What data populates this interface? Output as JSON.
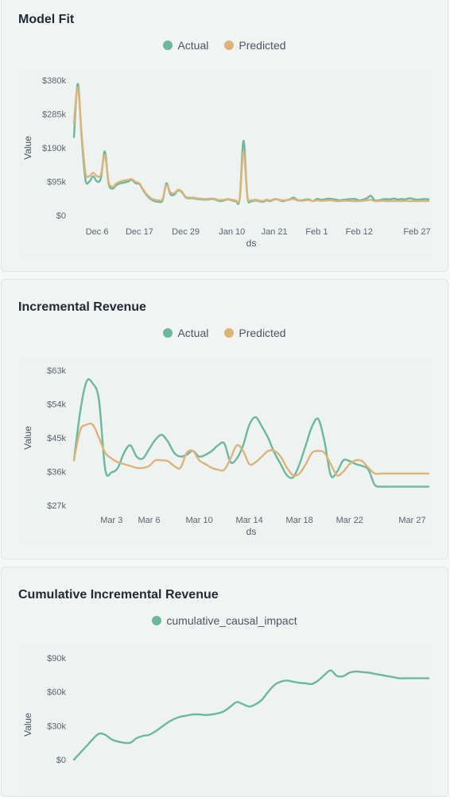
{
  "colors": {
    "actual": "#6bb89b",
    "predicted": "#dcb47b",
    "cumulative": "#6bb89b"
  },
  "panels": [
    {
      "title": "Model Fit",
      "legend": [
        {
          "label": "Actual",
          "color": "#6bb89b"
        },
        {
          "label": "Predicted",
          "color": "#dcb47b"
        }
      ]
    },
    {
      "title": "Incremental Revenue",
      "legend": [
        {
          "label": "Actual",
          "color": "#6bb89b"
        },
        {
          "label": "Predicted",
          "color": "#dcb47b"
        }
      ]
    },
    {
      "title": "Cumulative Incremental Revenue",
      "legend": [
        {
          "label": "cumulative_causal_impact",
          "color": "#6bb89b"
        }
      ]
    }
  ],
  "chart_data": [
    {
      "type": "line",
      "title": "Model Fit",
      "xlabel": "ds",
      "ylabel": "Value",
      "xlim": [
        "Nov 30",
        "Mar 1"
      ],
      "ylim": [
        0,
        380000
      ],
      "y_ticks": [
        "$0",
        "$95k",
        "$190k",
        "$285k",
        "$380k"
      ],
      "y_tick_values": [
        0,
        95000,
        190000,
        285000,
        380000
      ],
      "x_ticks": [
        "Dec 6",
        "Dec 17",
        "Dec 29",
        "Jan 10",
        "Jan 21",
        "Feb 1",
        "Feb 12",
        "Feb 27"
      ],
      "x_tick_positions": [
        6,
        17,
        29,
        41,
        52,
        63,
        74,
        89
      ],
      "x_range": [
        0,
        92
      ],
      "series": [
        {
          "name": "Actual",
          "color": "#6bb89b",
          "x": [
            0,
            1,
            2,
            3,
            4,
            5,
            6,
            7,
            8,
            9,
            10,
            11,
            12,
            13,
            14,
            15,
            16,
            17,
            18,
            19,
            20,
            21,
            22,
            23,
            24,
            25,
            26,
            27,
            28,
            29,
            30,
            31,
            32,
            33,
            34,
            35,
            36,
            37,
            38,
            39,
            40,
            41,
            42,
            43,
            44,
            45,
            46,
            47,
            48,
            49,
            50,
            51,
            52,
            53,
            54,
            55,
            56,
            57,
            58,
            59,
            60,
            61,
            62,
            63,
            64,
            65,
            66,
            67,
            68,
            69,
            70,
            71,
            72,
            73,
            74,
            75,
            76,
            77,
            78,
            79,
            80,
            81,
            82,
            83,
            84,
            85,
            86,
            87,
            88,
            89,
            90,
            91,
            92
          ],
          "y": [
            220000,
            370000,
            220000,
            100000,
            95000,
            110000,
            95000,
            105000,
            180000,
            90000,
            75000,
            85000,
            90000,
            92000,
            95000,
            100000,
            90000,
            88000,
            70000,
            55000,
            45000,
            40000,
            38000,
            42000,
            90000,
            60000,
            58000,
            70000,
            65000,
            50000,
            48000,
            48000,
            46000,
            45000,
            44000,
            45000,
            46000,
            43000,
            40000,
            42000,
            45000,
            42000,
            40000,
            46000,
            210000,
            52000,
            40000,
            42000,
            40000,
            38000,
            42000,
            40000,
            45000,
            44000,
            40000,
            42000,
            45000,
            50000,
            43000,
            42000,
            44000,
            45000,
            40000,
            46000,
            44000,
            45000,
            47000,
            46000,
            44000,
            42000,
            44000,
            45000,
            46000,
            46000,
            42000,
            44000,
            48000,
            55000,
            43000,
            42000,
            45000,
            46000,
            45000,
            47000,
            45000,
            46000,
            45000,
            48000,
            46000,
            44000,
            45000,
            46000,
            45000
          ]
        },
        {
          "name": "Predicted",
          "color": "#dcb47b",
          "x": [
            0,
            1,
            2,
            3,
            4,
            5,
            6,
            7,
            8,
            9,
            10,
            11,
            12,
            13,
            14,
            15,
            16,
            17,
            18,
            19,
            20,
            21,
            22,
            23,
            24,
            25,
            26,
            27,
            28,
            29,
            30,
            31,
            32,
            33,
            34,
            35,
            36,
            37,
            38,
            39,
            40,
            41,
            42,
            43,
            44,
            45,
            46,
            47,
            48,
            49,
            50,
            51,
            52,
            53,
            54,
            55,
            56,
            57,
            58,
            59,
            60,
            61,
            62,
            63,
            64,
            65,
            66,
            67,
            68,
            69,
            70,
            71,
            72,
            73,
            74,
            75,
            76,
            77,
            78,
            79,
            80,
            81,
            82,
            83,
            84,
            85,
            86,
            87,
            88,
            89,
            90,
            91,
            92
          ],
          "y": [
            260000,
            360000,
            230000,
            120000,
            110000,
            120000,
            110000,
            115000,
            170000,
            95000,
            80000,
            90000,
            95000,
            98000,
            100000,
            102000,
            94000,
            90000,
            72000,
            58000,
            48000,
            44000,
            42000,
            46000,
            85000,
            65000,
            62000,
            72000,
            67000,
            52000,
            50000,
            50000,
            48000,
            47000,
            46000,
            47000,
            47000,
            45000,
            43000,
            44000,
            46000,
            44000,
            42000,
            47000,
            180000,
            54000,
            43000,
            44000,
            42000,
            40000,
            44000,
            42000,
            46000,
            45000,
            42000,
            43000,
            44000,
            46000,
            42000,
            41000,
            42000,
            43000,
            40000,
            42000,
            41000,
            41000,
            42000,
            42000,
            40000,
            40000,
            41000,
            41000,
            40000,
            40000,
            40000,
            41000,
            42000,
            44000,
            40000,
            40000,
            41000,
            40000,
            40000,
            40000,
            40000,
            40000,
            41000,
            40000,
            40000,
            40000,
            40000,
            40000,
            40000
          ]
        }
      ]
    },
    {
      "type": "line",
      "title": "Incremental Revenue",
      "xlabel": "ds",
      "ylabel": "Value",
      "xlim": [
        "Feb 28",
        "Mar 28"
      ],
      "ylim": [
        27000,
        63000
      ],
      "y_ticks": [
        "$27k",
        "$36k",
        "$45k",
        "$54k",
        "$63k"
      ],
      "y_tick_values": [
        27000,
        36000,
        45000,
        54000,
        63000
      ],
      "x_ticks": [
        "Mar 3",
        "Mar 6",
        "Mar 10",
        "Mar 14",
        "Mar 18",
        "Mar 22",
        "Mar 27"
      ],
      "x_tick_positions": [
        3,
        6,
        10,
        14,
        18,
        22,
        27
      ],
      "x_range": [
        0,
        28.3
      ],
      "series": [
        {
          "name": "Actual",
          "color": "#6bb89b",
          "x": [
            0,
            0.5,
            1,
            1.5,
            2,
            2.5,
            3,
            3.5,
            4,
            4.5,
            5,
            5.5,
            6,
            6.5,
            7,
            7.5,
            8,
            8.5,
            9,
            9.5,
            10,
            10.5,
            11,
            11.5,
            12,
            12.5,
            13,
            13.5,
            14,
            14.5,
            15,
            15.5,
            16,
            16.5,
            17,
            17.5,
            18,
            18.5,
            19,
            19.5,
            20,
            20.5,
            21,
            21.5,
            22,
            22.5,
            23,
            23.5,
            24,
            24.5,
            25,
            25.5,
            26,
            26.5,
            27,
            27.5,
            28,
            28.3
          ],
          "y": [
            39000,
            52000,
            60000,
            59500,
            55000,
            36500,
            35800,
            37000,
            41000,
            43000,
            40000,
            39500,
            42000,
            44500,
            45800,
            44000,
            41000,
            40000,
            40500,
            41500,
            40000,
            40500,
            41500,
            43000,
            43500,
            38500,
            39500,
            43000,
            48500,
            50500,
            48000,
            45000,
            41000,
            38000,
            35000,
            34500,
            38000,
            43000,
            48000,
            50000,
            44000,
            35000,
            36000,
            39000,
            38800,
            38000,
            37500,
            36500,
            32500,
            32000,
            32000,
            32000,
            32000,
            32000,
            32000,
            32000,
            32000,
            32000
          ]
        },
        {
          "name": "Predicted",
          "color": "#dcb47b",
          "x": [
            0,
            0.5,
            1,
            1.5,
            2,
            2.5,
            3,
            3.5,
            4,
            4.5,
            5,
            5.5,
            6,
            6.5,
            7,
            7.5,
            8,
            8.5,
            9,
            9.5,
            10,
            10.5,
            11,
            11.5,
            12,
            12.5,
            13,
            13.5,
            14,
            14.5,
            15,
            15.5,
            16,
            16.5,
            17,
            17.5,
            18,
            18.5,
            19,
            19.5,
            20,
            20.5,
            21,
            21.5,
            22,
            22.5,
            23,
            23.5,
            24,
            24.5,
            25,
            25.5,
            26,
            26.5,
            27,
            27.5,
            28,
            28.3
          ],
          "y": [
            39000,
            47000,
            48500,
            48500,
            45000,
            41000,
            39500,
            38500,
            38000,
            37500,
            37000,
            37000,
            37500,
            39000,
            39000,
            38800,
            37500,
            37000,
            41000,
            41500,
            39000,
            38000,
            37000,
            36500,
            36500,
            39500,
            43000,
            41500,
            38000,
            38500,
            40000,
            41500,
            41500,
            40000,
            37000,
            35000,
            35500,
            38000,
            41000,
            41500,
            41000,
            38000,
            35000,
            36000,
            38000,
            39000,
            38800,
            37000,
            35500,
            35500,
            35500,
            35500,
            35500,
            35500,
            35500,
            35500,
            35500,
            35500
          ]
        }
      ]
    },
    {
      "type": "line",
      "title": "Cumulative Incremental Revenue",
      "xlabel": "",
      "ylabel": "Value",
      "ylim": [
        0,
        90000
      ],
      "y_ticks": [
        "$0",
        "$30k",
        "$60k",
        "$90k"
      ],
      "y_tick_values": [
        0,
        30000,
        60000,
        90000
      ],
      "x_range": [
        0,
        28.3
      ],
      "series": [
        {
          "name": "cumulative_causal_impact",
          "color": "#6bb89b",
          "x": [
            0,
            0.5,
            1,
            1.5,
            2,
            2.5,
            3,
            3.5,
            4,
            4.5,
            5,
            5.5,
            6,
            6.5,
            7,
            7.5,
            8,
            8.5,
            9,
            9.5,
            10,
            10.5,
            11,
            11.5,
            12,
            12.5,
            13,
            13.5,
            14,
            14.5,
            15,
            15.5,
            16,
            16.5,
            17,
            17.5,
            18,
            18.5,
            19,
            19.5,
            20,
            20.5,
            21,
            21.5,
            22,
            22.5,
            23,
            23.5,
            24,
            24.5,
            25,
            25.5,
            26,
            26.5,
            27,
            27.5,
            28,
            28.3
          ],
          "y": [
            0,
            6000,
            12000,
            18000,
            23000,
            22000,
            18000,
            16000,
            15000,
            15000,
            19000,
            21000,
            22000,
            25000,
            29000,
            33000,
            36000,
            38000,
            39000,
            40000,
            40000,
            39500,
            40000,
            41000,
            43000,
            47000,
            51000,
            49000,
            47000,
            49000,
            53000,
            60000,
            66000,
            69000,
            70000,
            69000,
            68000,
            67500,
            67000,
            70000,
            75000,
            79000,
            74000,
            74000,
            77000,
            78000,
            77500,
            77000,
            76000,
            75000,
            74000,
            73000,
            72000,
            72000,
            72000,
            72000,
            72000,
            72000
          ]
        }
      ]
    }
  ]
}
